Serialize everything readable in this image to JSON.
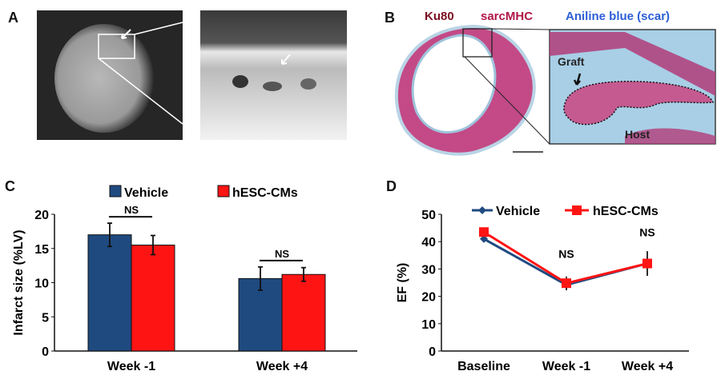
{
  "panels": {
    "a": {
      "label": "A"
    },
    "b": {
      "label": "B",
      "stain_ku80": "Ku80",
      "stain_sarcmhc": "sarcMHC",
      "stain_aniline": "Aniline blue (scar)",
      "graft_label": "Graft",
      "host_label": "Host"
    },
    "c": {
      "label": "C"
    },
    "d": {
      "label": "D"
    }
  },
  "colors": {
    "vehicle": "#1f4a80",
    "hesc": "#ff1414",
    "ku80": "#7a1020",
    "sarcmhc": "#b01848",
    "aniline": "#2e5fd6"
  },
  "chart_data": [
    {
      "type": "bar",
      "ylabel": "Infarct size (%LV)",
      "xlabel": "",
      "ylim": [
        0,
        20
      ],
      "yticks": [
        "0",
        "5",
        "10",
        "15",
        "20"
      ],
      "categories": [
        "Week -1",
        "Week +4"
      ],
      "legend": [
        "Vehicle",
        "hESC-CMs"
      ],
      "legend_position": "top",
      "series": [
        {
          "name": "Vehicle",
          "values": [
            17.0,
            10.6
          ],
          "errors": [
            1.7,
            1.7
          ]
        },
        {
          "name": "hESC-CMs",
          "values": [
            15.5,
            11.2
          ],
          "errors": [
            1.4,
            1.0
          ]
        }
      ],
      "annotations": [
        "NS",
        "NS"
      ]
    },
    {
      "type": "line",
      "ylabel": "EF (%)",
      "xlabel": "",
      "ylim": [
        0,
        50
      ],
      "yticks": [
        "0",
        "10",
        "20",
        "30",
        "40",
        "50"
      ],
      "categories": [
        "Baseline",
        "Week -1",
        "Week +4"
      ],
      "legend": [
        "Vehicle",
        "hESC-CMs"
      ],
      "legend_position": "top",
      "series": [
        {
          "name": "Vehicle",
          "values": [
            41.0,
            24.2,
            32.0
          ],
          "errors": [
            0.8,
            2.0,
            4.5
          ]
        },
        {
          "name": "hESC-CMs",
          "values": [
            43.5,
            24.8,
            32.0
          ],
          "errors": [
            1.0,
            2.5,
            4.5
          ]
        }
      ],
      "annotations": [
        "NS",
        "NS"
      ]
    }
  ]
}
